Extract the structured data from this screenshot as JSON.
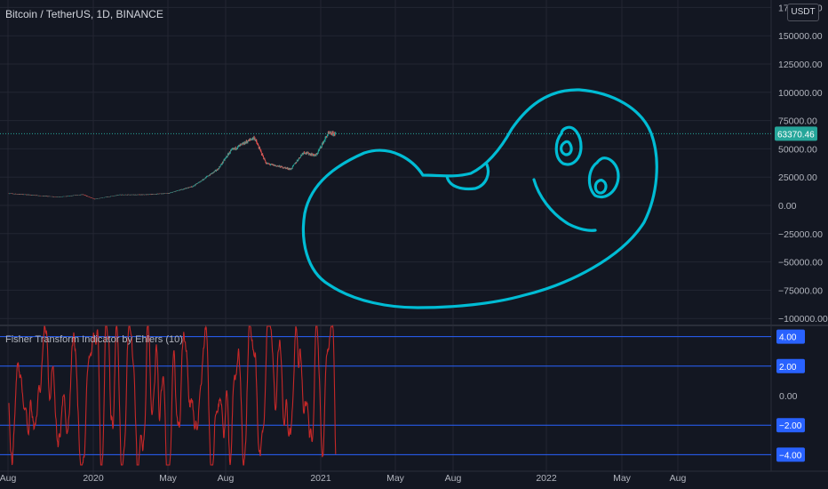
{
  "header": {
    "title": "Bitcoin / TetherUS, 1D, BINANCE",
    "currency": "USDT"
  },
  "colors": {
    "background": "#131722",
    "grid": "#232632",
    "candle_up": "#26a69a",
    "candle_down": "#ef5350",
    "drawing": "#00bcd4",
    "fisher_line": "#c62828",
    "level_line": "#2962ff",
    "last_price": "#26a69a"
  },
  "chart_data": [
    {
      "type": "candlestick",
      "title": "Bitcoin / TetherUS, 1D, BINANCE",
      "y_ticks": [
        -100000,
        -75000,
        -50000,
        -25000,
        0,
        25000,
        50000,
        75000,
        100000,
        125000,
        150000,
        175000
      ],
      "y_tick_labels": [
        "−100000.00",
        "−75000.00",
        "−50000.00",
        "−25000.00",
        "0.00",
        "25000.00",
        "50000.00",
        "75000.00",
        "100000.00",
        "125000.00",
        "150000.00",
        "175000.00"
      ],
      "x_tick_labels": [
        "Aug",
        "2020",
        "May",
        "Aug",
        "2021",
        "May",
        "Aug",
        "2022",
        "May",
        "Aug"
      ],
      "last_price": 63370.46,
      "last_price_label": "63370.46",
      "price_path": [
        [
          "2019-08",
          10500
        ],
        [
          "2019-10",
          9000
        ],
        [
          "2019-12",
          7300
        ],
        [
          "2020-02",
          9500
        ],
        [
          "2020-03",
          5500
        ],
        [
          "2020-05",
          9300
        ],
        [
          "2020-07",
          9400
        ],
        [
          "2020-09",
          10700
        ],
        [
          "2020-11",
          17000
        ],
        [
          "2021-01",
          32000
        ],
        [
          "2021-02",
          48000
        ],
        [
          "2021-04",
          60000
        ],
        [
          "2021-05",
          37000
        ],
        [
          "2021-07",
          32000
        ],
        [
          "2021-08",
          47000
        ],
        [
          "2021-09",
          44000
        ],
        [
          "2021-10",
          63370
        ]
      ]
    },
    {
      "type": "line",
      "title": "Fisher Transform Indicator by Ehlers (10)",
      "levels": [
        4,
        2,
        -2,
        -4
      ],
      "level_labels": [
        "4.00",
        "2.00",
        "−2.00",
        "−4.00"
      ],
      "y_tick_labels": [
        "0.00"
      ],
      "y_range": [
        -4.8,
        4.8
      ]
    }
  ]
}
